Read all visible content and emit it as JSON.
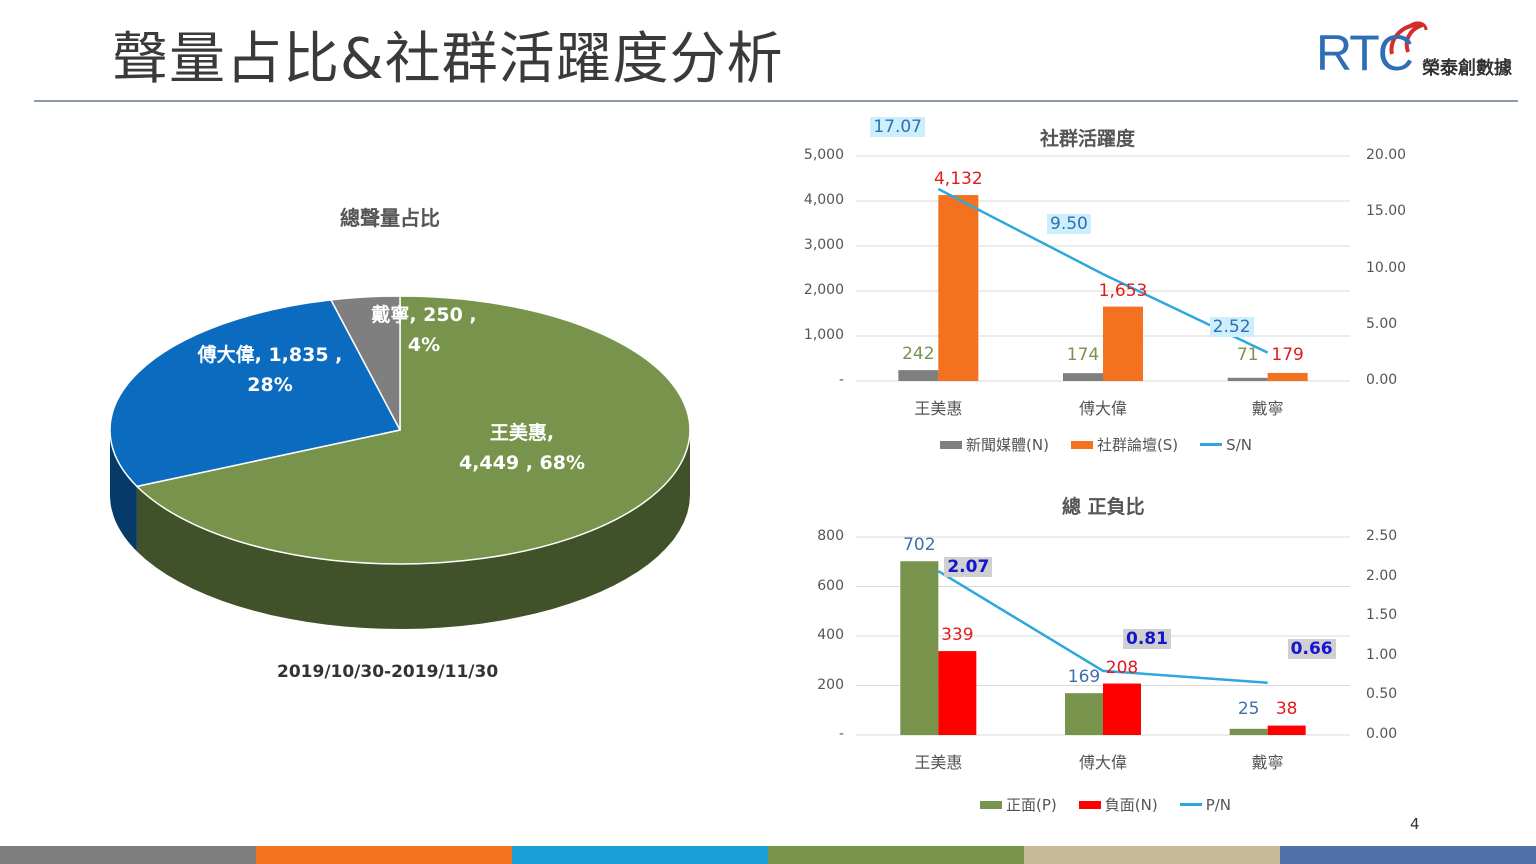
{
  "slide": {
    "title": "聲量占比&社群活躍度分析",
    "page_number": "4"
  },
  "logo": {
    "text": "RTC",
    "subtitle": "榮泰創數據"
  },
  "colors": {
    "green": "#77934c",
    "blue": "#0b6bbf",
    "gray": "#7f7f7f",
    "orange": "#f47120",
    "red": "#ff0000",
    "line": "#2ea8dc",
    "bottom_bar": [
      "#7f7f7f",
      "#f47120",
      "#1aa0d8",
      "#77934c",
      "#c7b89a",
      "#4f71a8"
    ]
  },
  "chart_data": [
    {
      "type": "pie",
      "title": "總聲量占比",
      "subtitle": "2019/10/30-2019/11/30",
      "slices": [
        {
          "label": "王美惠",
          "value": 4449,
          "percent": 68,
          "label_lines": [
            "王美惠,",
            "4,449 , 68%"
          ]
        },
        {
          "label": "傅大偉",
          "value": 1835,
          "percent": 28,
          "label_lines": [
            "傅大偉, 1,835 ,",
            "28%"
          ]
        },
        {
          "label": "戴寧",
          "value": 250,
          "percent": 4,
          "label_lines": [
            "戴寧, 250 ,",
            "4%"
          ]
        }
      ]
    },
    {
      "type": "bar",
      "title": "社群活躍度",
      "categories": [
        "王美惠",
        "傅大偉",
        "戴寧"
      ],
      "series": [
        {
          "name": "新聞媒體(N)",
          "values": [
            242,
            174,
            71
          ],
          "labels": [
            "242",
            "174",
            "71"
          ]
        },
        {
          "name": "社群論壇(S)",
          "values": [
            4132,
            1653,
            179
          ],
          "labels": [
            "4,132",
            "1,653",
            "179"
          ]
        }
      ],
      "line_series": {
        "name": "S/N",
        "values": [
          17.07,
          9.5,
          2.52
        ],
        "labels": [
          "17.07",
          "9.50",
          "2.52"
        ]
      },
      "ylim": [
        0,
        5000
      ],
      "yticks": [
        "-",
        "1,000",
        "2,000",
        "3,000",
        "4,000",
        "5,000"
      ],
      "y2lim": [
        0,
        20
      ],
      "y2ticks": [
        "0.00",
        "5.00",
        "10.00",
        "15.00",
        "20.00"
      ]
    },
    {
      "type": "bar",
      "title": "總 正負比",
      "categories": [
        "王美惠",
        "傅大偉",
        "戴寧"
      ],
      "series": [
        {
          "name": "正面(P)",
          "values": [
            702,
            169,
            25
          ],
          "labels": [
            "702",
            "169",
            "25"
          ]
        },
        {
          "name": "負面(N)",
          "values": [
            339,
            208,
            38
          ],
          "labels": [
            "339",
            "208",
            "38"
          ]
        }
      ],
      "line_series": {
        "name": "P/N",
        "values": [
          2.07,
          0.81,
          0.66
        ],
        "labels": [
          "2.07",
          "0.81",
          "0.66"
        ]
      },
      "ylim": [
        0,
        800
      ],
      "yticks": [
        "-",
        "200",
        "400",
        "600",
        "800"
      ],
      "y2lim": [
        0,
        2.5
      ],
      "y2ticks": [
        "0.00",
        "0.50",
        "1.00",
        "1.50",
        "2.00",
        "2.50"
      ]
    }
  ]
}
